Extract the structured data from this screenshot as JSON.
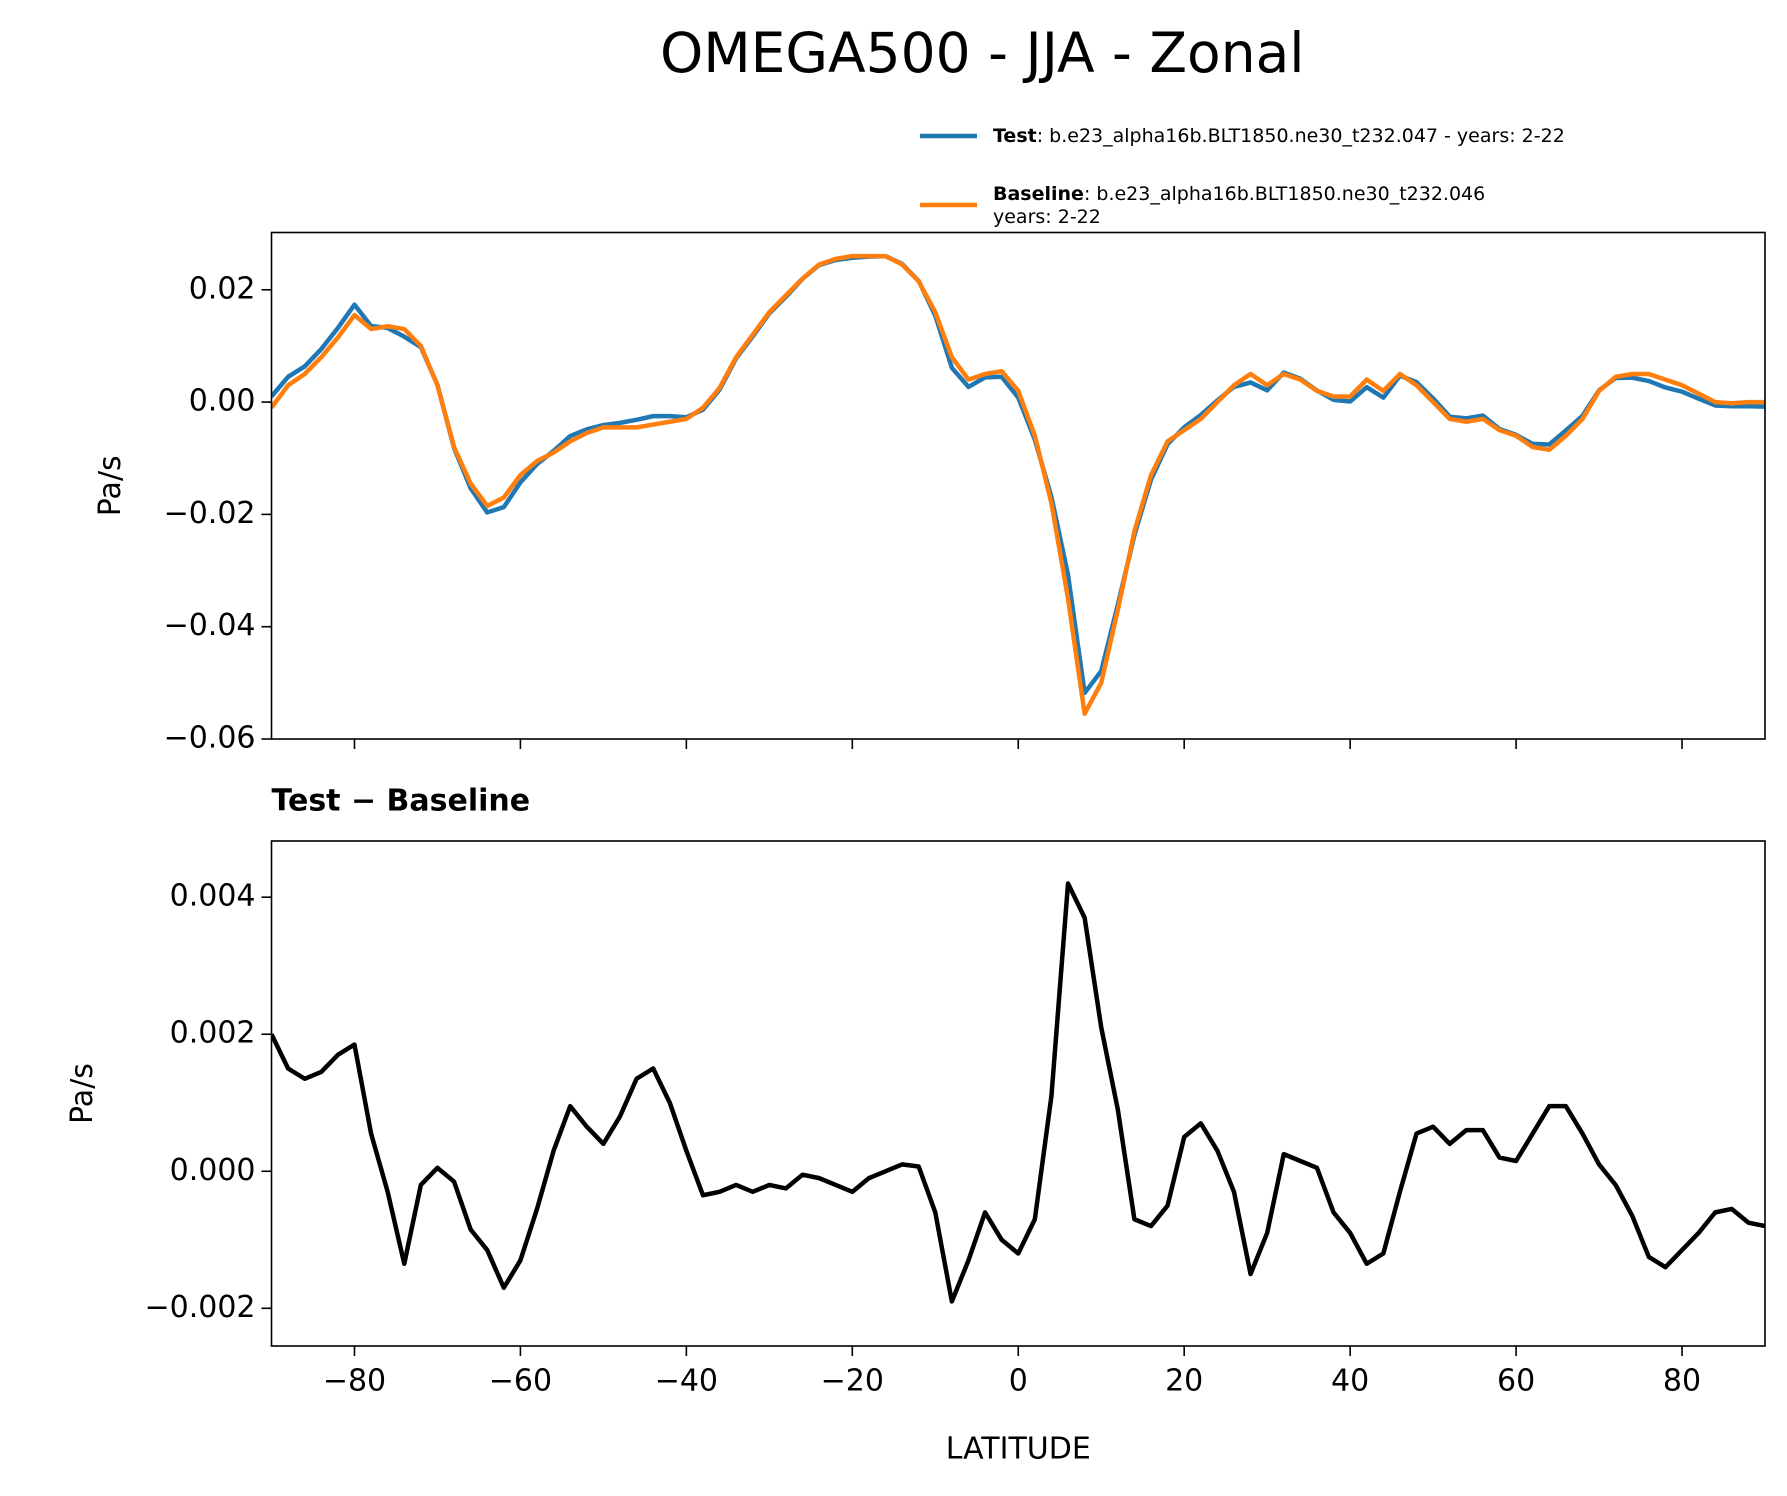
{
  "chart_data": [
    {
      "type": "line",
      "title": "OMEGA500 - JJA - Zonal",
      "ylabel": "Pa/s",
      "x": [
        -90,
        -88,
        -86,
        -84,
        -82,
        -80,
        -78,
        -76,
        -74,
        -72,
        -70,
        -68,
        -66,
        -64,
        -62,
        -60,
        -58,
        -56,
        -54,
        -52,
        -50,
        -48,
        -46,
        -44,
        -42,
        -40,
        -38,
        -36,
        -34,
        -32,
        -30,
        -28,
        -26,
        -24,
        -22,
        -20,
        -18,
        -16,
        -14,
        -12,
        -10,
        -8,
        -6,
        -4,
        -2,
        0,
        2,
        4,
        6,
        8,
        10,
        12,
        14,
        16,
        18,
        20,
        22,
        24,
        26,
        28,
        30,
        32,
        34,
        36,
        38,
        40,
        42,
        44,
        46,
        48,
        50,
        52,
        54,
        56,
        58,
        60,
        62,
        64,
        66,
        68,
        70,
        72,
        74,
        76,
        78,
        80,
        82,
        84,
        86,
        88,
        90
      ],
      "series": [
        {
          "name": "Test",
          "description": [
            ": b.e23_alpha16b.BLT1850.ne30_t232.047 - years: 2-22"
          ],
          "color": "#1f77b4",
          "values": [
            0.001,
            0.0045,
            0.00635,
            0.00945,
            0.0132,
            0.01735,
            0.01355,
            0.0132,
            0.01165,
            0.0098,
            0.00305,
            -0.00815,
            -0.01535,
            -0.01965,
            -0.0187,
            -0.0143,
            -0.01105,
            -0.0087,
            -0.00605,
            -0.00485,
            -0.0041,
            -0.0037,
            -0.00315,
            -0.0025,
            -0.0025,
            -0.0027,
            -0.00135,
            0.0022,
            0.0078,
            0.0117,
            0.0158,
            0.01875,
            0.02195,
            0.0244,
            0.0253,
            0.0257,
            0.0259,
            0.026,
            0.0246,
            0.02157,
            0.0154,
            0.0061,
            0.0027,
            0.0044,
            0.0045,
            0.0008,
            -0.0067,
            -0.0169,
            -0.0308,
            -0.0518,
            -0.0479,
            -0.0361,
            -0.0237,
            -0.0138,
            -0.0075,
            -0.0045,
            -0.0023,
            0.0003,
            0.0027,
            0.0035,
            0.0021,
            0.00525,
            0.00415,
            0.00205,
            0.0004,
            0.0001,
            0.00265,
            0.0008,
            0.0047,
            0.00355,
            0.00065,
            -0.0026,
            -0.0029,
            -0.0024,
            -0.0048,
            -0.00585,
            -0.00745,
            -0.00755,
            -0.00505,
            -0.00245,
            0.0021,
            0.0043,
            0.00435,
            0.00375,
            0.0026,
            0.00185,
            0.0006,
            -0.0006,
            -0.00075,
            -0.00075,
            -0.0008
          ]
        },
        {
          "name": "Baseline",
          "description": [
            ": b.e23_alpha16b.BLT1850.ne30_t232.046",
            "years: 2-22"
          ],
          "color": "#ff7f0e",
          "values": [
            -0.001,
            0.003,
            0.005,
            0.008,
            0.0115,
            0.0155,
            0.013,
            0.0135,
            0.013,
            0.01,
            0.003,
            -0.008,
            -0.0145,
            -0.0185,
            -0.017,
            -0.013,
            -0.0105,
            -0.009,
            -0.007,
            -0.0055,
            -0.0045,
            -0.0045,
            -0.0045,
            -0.004,
            -0.0035,
            -0.003,
            -0.001,
            0.0025,
            0.008,
            0.012,
            0.016,
            0.019,
            0.022,
            0.0245,
            0.0255,
            0.026,
            0.026,
            0.026,
            0.0245,
            0.0215,
            0.016,
            0.008,
            0.004,
            0.005,
            0.0055,
            0.002,
            -0.006,
            -0.018,
            -0.035,
            -0.0555,
            -0.05,
            -0.037,
            -0.023,
            -0.013,
            -0.007,
            -0.005,
            -0.003,
            0.0,
            0.003,
            0.005,
            0.003,
            0.005,
            0.004,
            0.002,
            0.001,
            0.001,
            0.004,
            0.002,
            0.005,
            0.003,
            0.0,
            -0.003,
            -0.0035,
            -0.003,
            -0.005,
            -0.006,
            -0.008,
            -0.0085,
            -0.006,
            -0.003,
            0.002,
            0.0045,
            0.005,
            0.005,
            0.004,
            0.003,
            0.0015,
            0.0,
            -0.0002,
            0.0,
            0.0
          ]
        }
      ],
      "xlim": [
        -90,
        90
      ],
      "xticks": [
        {
          "value": -80,
          "label": "−80"
        },
        {
          "value": -60,
          "label": "−60"
        },
        {
          "value": -40,
          "label": "−40"
        },
        {
          "value": -20,
          "label": "−20"
        },
        0,
        20,
        40,
        60,
        80
      ],
      "ylim": [
        -0.06,
        0.0302
      ],
      "yticks": [
        {
          "value": 0.02,
          "label": "0.02"
        },
        {
          "value": 0,
          "label": "0.00"
        },
        {
          "value": -0.02,
          "label": "−0.02"
        },
        {
          "value": -0.04,
          "label": "−0.04"
        },
        {
          "value": -0.06,
          "label": "−0.06"
        }
      ],
      "legend": "upper right"
    },
    {
      "type": "line",
      "title": "Test − Baseline",
      "ylabel": "Pa/s",
      "xlabel": "LATITUDE",
      "x": [
        -90,
        -88,
        -86,
        -84,
        -82,
        -80,
        -78,
        -76,
        -74,
        -72,
        -70,
        -68,
        -66,
        -64,
        -62,
        -60,
        -58,
        -56,
        -54,
        -52,
        -50,
        -48,
        -46,
        -44,
        -42,
        -40,
        -38,
        -36,
        -34,
        -32,
        -30,
        -28,
        -26,
        -24,
        -22,
        -20,
        -18,
        -16,
        -14,
        -12,
        -10,
        -8,
        -6,
        -4,
        -2,
        0,
        2,
        4,
        6,
        8,
        10,
        12,
        14,
        16,
        18,
        20,
        22,
        24,
        26,
        28,
        30,
        32,
        34,
        36,
        38,
        40,
        42,
        44,
        46,
        48,
        50,
        52,
        54,
        56,
        58,
        60,
        62,
        64,
        66,
        68,
        70,
        72,
        74,
        76,
        78,
        80,
        82,
        84,
        86,
        88,
        90
      ],
      "color": "#000000",
      "values": [
        0.002,
        0.0015,
        0.00135,
        0.00145,
        0.0017,
        0.00185,
        0.00055,
        -0.0003,
        -0.00135,
        -0.0002,
        5e-05,
        -0.00015,
        -0.00085,
        -0.00115,
        -0.0017,
        -0.0013,
        -0.00055,
        0.0003,
        0.00095,
        0.00065,
        0.0004,
        0.0008,
        0.00135,
        0.0015,
        0.001,
        0.0003,
        -0.00035,
        -0.0003,
        -0.0002,
        -0.0003,
        -0.0002,
        -0.00025,
        -5e-05,
        -0.0001,
        -0.0002,
        -0.0003,
        -0.0001,
        0.0,
        0.0001,
        7e-05,
        -0.0006,
        -0.0019,
        -0.0013,
        -0.0006,
        -0.001,
        -0.0012,
        -0.0007,
        0.0011,
        0.0042,
        0.0037,
        0.0021,
        0.0009,
        -0.0007,
        -0.0008,
        -0.0005,
        0.0005,
        0.0007,
        0.0003,
        -0.0003,
        -0.0015,
        -0.0009,
        0.00025,
        0.00015,
        5e-05,
        -0.0006,
        -0.0009,
        -0.00135,
        -0.0012,
        -0.0003,
        0.00055,
        0.00065,
        0.0004,
        0.0006,
        0.0006,
        0.0002,
        0.00015,
        0.00055,
        0.00095,
        0.00095,
        0.00055,
        0.0001,
        -0.0002,
        -0.00065,
        -0.00125,
        -0.0014,
        -0.00115,
        -0.0009,
        -0.0006,
        -0.00055,
        -0.00075,
        -0.0008
      ],
      "xlim": [
        -90,
        90
      ],
      "xticks": [
        {
          "value": -80,
          "label": "−80"
        },
        {
          "value": -60,
          "label": "−60"
        },
        {
          "value": -40,
          "label": "−40"
        },
        {
          "value": -20,
          "label": "−20"
        },
        0,
        20,
        40,
        60,
        80
      ],
      "ylim": [
        -0.00255,
        0.00482
      ],
      "yticks": [
        0.004,
        0.002,
        {
          "value": 0,
          "label": "0.000"
        },
        {
          "value": -0.002,
          "label": "−0.002"
        }
      ]
    }
  ]
}
